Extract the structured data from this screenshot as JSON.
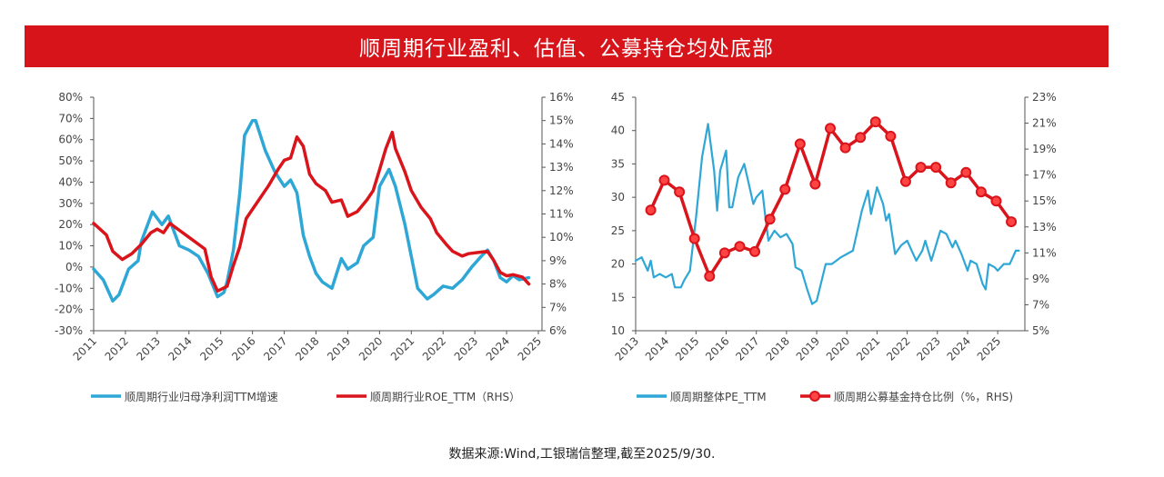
{
  "title": "顺周期行业盈利、估值、公募持仓均处底部",
  "source": "数据来源:Wind,工银瑞信整理,截至2025/9/30.",
  "colors": {
    "title_bg": "#d7141a",
    "blue": "#2ea7d6",
    "red": "#d9141b"
  },
  "chart_data": [
    {
      "type": "line",
      "title": "",
      "x_ticks": [
        "2011",
        "2012",
        "2013",
        "2014",
        "2015",
        "2016",
        "2017",
        "2018",
        "2019",
        "2020",
        "2021",
        "2022",
        "2023",
        "2024",
        "2025"
      ],
      "xlim": [
        2011,
        2025
      ],
      "y_left": {
        "ylim": [
          -30,
          80
        ],
        "ticks": [
          "-30%",
          "-20%",
          "-10%",
          "0%",
          "10%",
          "20%",
          "30%",
          "40%",
          "50%",
          "60%",
          "70%",
          "80%"
        ]
      },
      "y_right": {
        "ylim": [
          6,
          16
        ],
        "ticks": [
          "6%",
          "7%",
          "8%",
          "9%",
          "10%",
          "11%",
          "12%",
          "13%",
          "14%",
          "15%",
          "16%"
        ]
      },
      "legend_position": "bottom",
      "series": [
        {
          "name": "顺周期行业归母净利润TTM增速",
          "axis": "left",
          "color": "#2ea7d6",
          "markers": false,
          "points": [
            [
              2011.0,
              -1
            ],
            [
              2011.3,
              -6
            ],
            [
              2011.6,
              -16
            ],
            [
              2011.8,
              -13
            ],
            [
              2012.0,
              -5
            ],
            [
              2012.1,
              -1
            ],
            [
              2012.4,
              3
            ],
            [
              2012.5,
              12
            ],
            [
              2012.85,
              26
            ],
            [
              2013.15,
              20
            ],
            [
              2013.35,
              24
            ],
            [
              2013.5,
              18
            ],
            [
              2013.7,
              10
            ],
            [
              2014.0,
              8
            ],
            [
              2014.3,
              5
            ],
            [
              2014.6,
              -3
            ],
            [
              2014.9,
              -14
            ],
            [
              2015.1,
              -12
            ],
            [
              2015.2,
              -7
            ],
            [
              2015.4,
              8
            ],
            [
              2015.6,
              35
            ],
            [
              2015.75,
              62
            ],
            [
              2016.0,
              69
            ],
            [
              2016.1,
              69
            ],
            [
              2016.4,
              55
            ],
            [
              2016.7,
              45
            ],
            [
              2017.0,
              38
            ],
            [
              2017.2,
              41
            ],
            [
              2017.4,
              35
            ],
            [
              2017.6,
              15
            ],
            [
              2017.8,
              5
            ],
            [
              2018.0,
              -3
            ],
            [
              2018.2,
              -7
            ],
            [
              2018.5,
              -10
            ],
            [
              2018.8,
              4
            ],
            [
              2019.0,
              -1
            ],
            [
              2019.3,
              2
            ],
            [
              2019.5,
              10
            ],
            [
              2019.8,
              14
            ],
            [
              2020.0,
              38
            ],
            [
              2020.3,
              46
            ],
            [
              2020.5,
              38
            ],
            [
              2020.8,
              20
            ],
            [
              2021.0,
              5
            ],
            [
              2021.2,
              -10
            ],
            [
              2021.5,
              -15
            ],
            [
              2021.7,
              -13
            ],
            [
              2022.0,
              -9
            ],
            [
              2022.3,
              -10
            ],
            [
              2022.6,
              -6
            ],
            [
              2022.9,
              0
            ],
            [
              2023.2,
              5
            ],
            [
              2023.4,
              8
            ],
            [
              2023.6,
              3
            ],
            [
              2023.8,
              -5
            ],
            [
              2024.0,
              -7
            ],
            [
              2024.2,
              -4
            ],
            [
              2024.4,
              -6
            ],
            [
              2024.7,
              -5
            ]
          ]
        },
        {
          "name": "顺周期行业ROE_TTM（RHS）",
          "axis": "right",
          "color": "#d9141b",
          "markers": false,
          "points": [
            [
              2011.0,
              10.6
            ],
            [
              2011.4,
              10.1
            ],
            [
              2011.6,
              9.4
            ],
            [
              2011.9,
              9.05
            ],
            [
              2012.2,
              9.3
            ],
            [
              2012.5,
              9.7
            ],
            [
              2012.8,
              10.2
            ],
            [
              2013.0,
              10.35
            ],
            [
              2013.2,
              10.2
            ],
            [
              2013.4,
              10.6
            ],
            [
              2013.7,
              10.3
            ],
            [
              2014.0,
              10.0
            ],
            [
              2014.3,
              9.7
            ],
            [
              2014.5,
              9.5
            ],
            [
              2014.7,
              8.3
            ],
            [
              2014.9,
              7.7
            ],
            [
              2015.2,
              7.9
            ],
            [
              2015.4,
              8.8
            ],
            [
              2015.6,
              9.6
            ],
            [
              2015.8,
              10.8
            ],
            [
              2016.0,
              11.2
            ],
            [
              2016.2,
              11.6
            ],
            [
              2016.5,
              12.2
            ],
            [
              2016.8,
              12.9
            ],
            [
              2017.0,
              13.3
            ],
            [
              2017.2,
              13.4
            ],
            [
              2017.4,
              14.3
            ],
            [
              2017.6,
              13.9
            ],
            [
              2017.8,
              12.7
            ],
            [
              2018.0,
              12.3
            ],
            [
              2018.3,
              12.0
            ],
            [
              2018.5,
              11.5
            ],
            [
              2018.8,
              11.6
            ],
            [
              2019.0,
              10.9
            ],
            [
              2019.3,
              11.1
            ],
            [
              2019.6,
              11.6
            ],
            [
              2019.8,
              12.0
            ],
            [
              2020.0,
              12.9
            ],
            [
              2020.2,
              13.8
            ],
            [
              2020.4,
              14.5
            ],
            [
              2020.5,
              13.8
            ],
            [
              2020.8,
              12.8
            ],
            [
              2021.0,
              12.0
            ],
            [
              2021.3,
              11.3
            ],
            [
              2021.6,
              10.8
            ],
            [
              2021.8,
              10.2
            ],
            [
              2022.1,
              9.7
            ],
            [
              2022.3,
              9.4
            ],
            [
              2022.6,
              9.2
            ],
            [
              2022.8,
              9.3
            ],
            [
              2023.1,
              9.35
            ],
            [
              2023.4,
              9.4
            ],
            [
              2023.6,
              9.0
            ],
            [
              2023.8,
              8.5
            ],
            [
              2024.0,
              8.35
            ],
            [
              2024.2,
              8.4
            ],
            [
              2024.5,
              8.3
            ],
            [
              2024.7,
              8.0
            ]
          ]
        }
      ]
    },
    {
      "type": "line",
      "title": "",
      "x_ticks": [
        "2013",
        "2014",
        "2015",
        "2016",
        "2017",
        "2018",
        "2019",
        "2020",
        "2021",
        "2022",
        "2023",
        "2024",
        "2025"
      ],
      "xlim": [
        2013,
        2025.9
      ],
      "y_left": {
        "ylim": [
          10,
          45
        ],
        "ticks": [
          "10",
          "15",
          "20",
          "25",
          "30",
          "35",
          "40",
          "45"
        ]
      },
      "y_right": {
        "ylim": [
          5,
          23
        ],
        "ticks": [
          "5%",
          "7%",
          "9%",
          "11%",
          "13%",
          "15%",
          "17%",
          "19%",
          "21%",
          "23%"
        ]
      },
      "legend_position": "bottom",
      "series": [
        {
          "name": "顺周期整体PE_TTM",
          "axis": "left",
          "color": "#2ea7d6",
          "markers": false,
          "points": [
            [
              2013.0,
              20.5
            ],
            [
              2013.2,
              21
            ],
            [
              2013.4,
              19
            ],
            [
              2013.5,
              20.5
            ],
            [
              2013.6,
              18
            ],
            [
              2013.8,
              18.5
            ],
            [
              2014.0,
              18
            ],
            [
              2014.2,
              18.5
            ],
            [
              2014.3,
              16.5
            ],
            [
              2014.5,
              16.5
            ],
            [
              2014.6,
              17.5
            ],
            [
              2014.8,
              19
            ],
            [
              2015.0,
              27
            ],
            [
              2015.2,
              36
            ],
            [
              2015.4,
              41
            ],
            [
              2015.6,
              34
            ],
            [
              2015.7,
              28
            ],
            [
              2015.8,
              34
            ],
            [
              2016.0,
              37
            ],
            [
              2016.1,
              28.5
            ],
            [
              2016.2,
              28.5
            ],
            [
              2016.4,
              33
            ],
            [
              2016.6,
              35
            ],
            [
              2016.8,
              31
            ],
            [
              2016.9,
              29
            ],
            [
              2017.0,
              30
            ],
            [
              2017.2,
              31
            ],
            [
              2017.3,
              27
            ],
            [
              2017.4,
              23.5
            ],
            [
              2017.6,
              25
            ],
            [
              2017.8,
              24
            ],
            [
              2018.0,
              24.5
            ],
            [
              2018.2,
              23
            ],
            [
              2018.3,
              19.5
            ],
            [
              2018.5,
              19
            ],
            [
              2018.7,
              16
            ],
            [
              2018.85,
              14
            ],
            [
              2019.0,
              14.5
            ],
            [
              2019.3,
              20
            ],
            [
              2019.5,
              20
            ],
            [
              2019.8,
              21
            ],
            [
              2020.0,
              21.5
            ],
            [
              2020.2,
              22
            ],
            [
              2020.5,
              28
            ],
            [
              2020.7,
              31
            ],
            [
              2020.8,
              27.5
            ],
            [
              2021.0,
              31.5
            ],
            [
              2021.2,
              29
            ],
            [
              2021.3,
              26.5
            ],
            [
              2021.4,
              27.5
            ],
            [
              2021.6,
              21.5
            ],
            [
              2021.8,
              22.8
            ],
            [
              2022.0,
              23.5
            ],
            [
              2022.2,
              21.5
            ],
            [
              2022.3,
              20.5
            ],
            [
              2022.5,
              22
            ],
            [
              2022.6,
              23.5
            ],
            [
              2022.8,
              20.5
            ],
            [
              2023.1,
              25
            ],
            [
              2023.3,
              24.5
            ],
            [
              2023.5,
              22.5
            ],
            [
              2023.6,
              23.5
            ],
            [
              2023.8,
              21.5
            ],
            [
              2024.0,
              19
            ],
            [
              2024.1,
              20.5
            ],
            [
              2024.3,
              20
            ],
            [
              2024.5,
              17
            ],
            [
              2024.6,
              16.2
            ],
            [
              2024.7,
              20
            ],
            [
              2024.9,
              19.5
            ],
            [
              2025.0,
              19
            ],
            [
              2025.2,
              20
            ],
            [
              2025.4,
              20
            ],
            [
              2025.6,
              22
            ],
            [
              2025.7,
              22
            ]
          ]
        },
        {
          "name": "顺周期公募基金持仓比例（%，RHS)",
          "axis": "right",
          "color": "#d9141b",
          "markers": true,
          "points": [
            [
              2013.5,
              14.3
            ],
            [
              2013.95,
              16.6
            ],
            [
              2014.45,
              15.7
            ],
            [
              2014.95,
              12.1
            ],
            [
              2015.45,
              9.2
            ],
            [
              2015.95,
              11.0
            ],
            [
              2016.45,
              11.5
            ],
            [
              2016.95,
              11.1
            ],
            [
              2017.45,
              13.6
            ],
            [
              2017.95,
              15.9
            ],
            [
              2018.45,
              19.4
            ],
            [
              2018.95,
              16.3
            ],
            [
              2019.45,
              20.6
            ],
            [
              2019.95,
              19.1
            ],
            [
              2020.45,
              19.9
            ],
            [
              2020.95,
              21.1
            ],
            [
              2021.45,
              20.0
            ],
            [
              2021.95,
              16.5
            ],
            [
              2022.45,
              17.6
            ],
            [
              2022.95,
              17.6
            ],
            [
              2023.45,
              16.4
            ],
            [
              2023.95,
              17.2
            ],
            [
              2024.45,
              15.7
            ],
            [
              2024.95,
              15.0
            ],
            [
              2025.45,
              13.4
            ]
          ]
        }
      ]
    }
  ]
}
